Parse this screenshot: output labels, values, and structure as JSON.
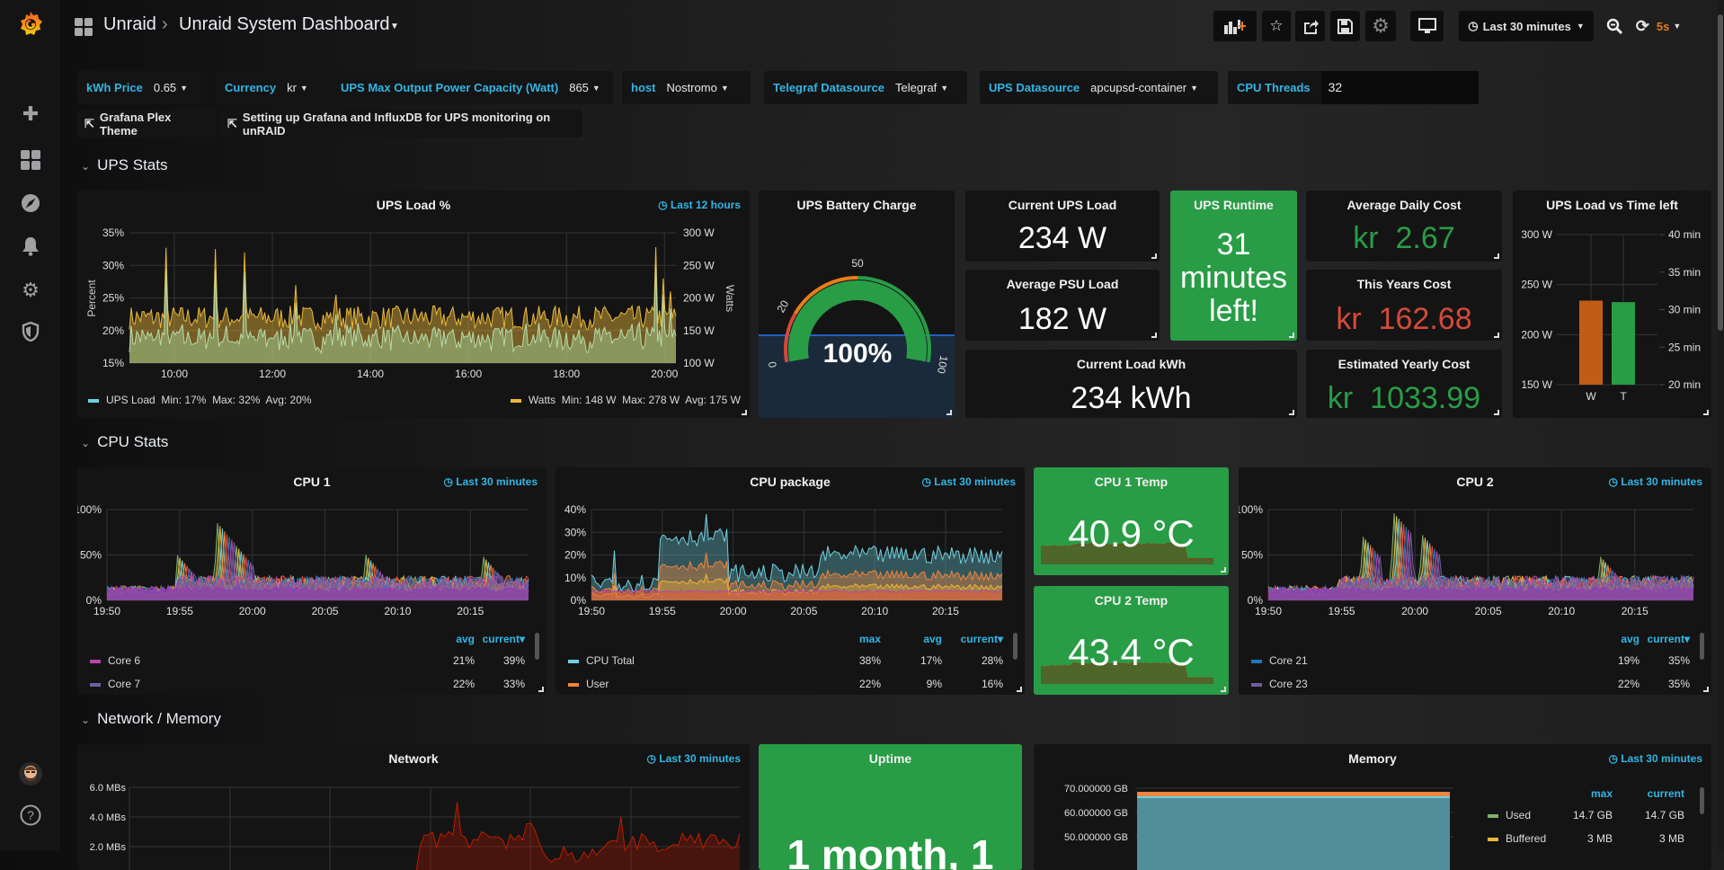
{
  "topbar": {
    "folder": "Unraid",
    "separator": "›",
    "dashboard": "Unraid System Dashboard",
    "time_range": "Last 30 minutes",
    "refresh": "5s"
  },
  "icons": {
    "logo": "grafana-logo",
    "create": "plus-icon",
    "dashboards": "grid-icon",
    "explore": "compass-icon",
    "alerting": "bell-icon",
    "config": "gear-icon",
    "admin": "shield-icon",
    "help": "help-icon"
  },
  "variables": [
    {
      "label": "kWh Price",
      "value": "0.65"
    },
    {
      "label": "Currency",
      "value": "kr"
    },
    {
      "label": "UPS Max Output Power Capacity (Watt)",
      "value": "865"
    },
    {
      "label": "host",
      "value": "Nostromo"
    },
    {
      "label": "Telegraf Datasource",
      "value": "Telegraf"
    },
    {
      "label": "UPS Datasource",
      "value": "apcupsd-container"
    },
    {
      "label": "CPU Threads",
      "value": "32"
    }
  ],
  "links": [
    {
      "label": "Grafana Plex Theme"
    },
    {
      "label": "Setting up Grafana and InfluxDB for UPS monitoring on unRAID"
    }
  ],
  "rows": [
    {
      "title": "UPS Stats"
    },
    {
      "title": "CPU Stats"
    },
    {
      "title": "Network / Memory"
    }
  ],
  "colors": {
    "green": "#299c46",
    "red": "#d44a3a",
    "orange": "#eb7b18",
    "link": "#33b5e5"
  },
  "ups_load": {
    "title": "UPS Load %",
    "time": "Last 12 hours",
    "y_left_label": "Percent",
    "y_right_label": "Watts",
    "x_range": [
      "09:05",
      "20:14"
    ],
    "x_ticks": [
      "10:00",
      "12:00",
      "14:00",
      "16:00",
      "18:00",
      "20:00"
    ],
    "y_left": {
      "min": 15,
      "max": 35,
      "ticks": [
        "15%",
        "20%",
        "25%",
        "30%",
        "35%"
      ]
    },
    "y_right": {
      "min": 100,
      "max": 300,
      "ticks": [
        "100 W",
        "150 W",
        "200 W",
        "250 W",
        "300 W"
      ]
    },
    "legend": [
      {
        "name": "UPS Load",
        "stats": "Min: 17%  Max: 32%  Avg: 20%",
        "color": "#6ed0e0"
      },
      {
        "name": "Watts",
        "stats": "Min: 148 W  Max: 278 W  Avg: 175 W",
        "color": "#eab839"
      }
    ]
  },
  "battery": {
    "title": "UPS Battery Charge",
    "value": "100%",
    "percent": 100,
    "thresholds": [
      {
        "label": "0",
        "at": 0
      },
      {
        "label": "20",
        "at": 20
      },
      {
        "label": "50",
        "at": 50
      },
      {
        "label": "100",
        "at": 100
      }
    ]
  },
  "current_ups_load": {
    "title": "Current UPS Load",
    "value": "234 W"
  },
  "avg_psu_load": {
    "title": "Average PSU Load",
    "value": "182 W"
  },
  "current_kwh": {
    "title": "Current Load kWh",
    "value": "234 kWh"
  },
  "runtime": {
    "title": "UPS Runtime",
    "value_lines": [
      "31",
      "minutes",
      "left!"
    ]
  },
  "avg_daily_cost": {
    "title": "Average Daily Cost",
    "prefix": "kr",
    "value": "2.67",
    "color": "#299c46"
  },
  "years_cost": {
    "title": "This Years Cost",
    "prefix": "kr",
    "value": "162.68",
    "color": "#d44a3a"
  },
  "yearly_cost": {
    "title": "Estimated Yearly Cost",
    "prefix": "kr",
    "value": "1033.99",
    "color": "#299c46"
  },
  "load_vs_time": {
    "title": "UPS Load vs Time left",
    "categories": [
      "W",
      "T"
    ],
    "values": [
      234,
      31
    ],
    "units": [
      "W",
      "min"
    ],
    "colors": [
      "#c15c17",
      "#299c46"
    ],
    "y_left": {
      "min": 150,
      "max": 300,
      "ticks": [
        "150 W",
        "200 W",
        "250 W",
        "300 W"
      ]
    },
    "y_right": {
      "min": 20,
      "max": 40,
      "ticks": [
        "20 min",
        "25 min",
        "30 min",
        "35 min",
        "40 min"
      ]
    }
  },
  "cpu1": {
    "title": "CPU 1",
    "time": "Last 30 minutes",
    "x_range": [
      "19:50",
      "20:19"
    ],
    "x_ticks": [
      "19:50",
      "19:55",
      "20:00",
      "20:05",
      "20:10",
      "20:15"
    ],
    "y": {
      "min": 0,
      "max": 100,
      "ticks": [
        "0%",
        "50%",
        "100%"
      ]
    },
    "columns": [
      "avg",
      "current▾"
    ],
    "legend": [
      {
        "name": "Core 6",
        "color": "#ba43a9",
        "values": [
          "21%",
          "39%"
        ]
      },
      {
        "name": "Core 7",
        "color": "#705da0",
        "values": [
          "22%",
          "33%"
        ]
      }
    ]
  },
  "cpu_package": {
    "title": "CPU package",
    "time": "Last 30 minutes",
    "x_range": [
      "19:50",
      "20:19"
    ],
    "x_ticks": [
      "19:50",
      "19:55",
      "20:00",
      "20:05",
      "20:10",
      "20:15"
    ],
    "y": {
      "min": 0,
      "max": 40,
      "ticks": [
        "0%",
        "10%",
        "20%",
        "30%",
        "40%"
      ]
    },
    "columns": [
      "max",
      "avg",
      "current▾"
    ],
    "legend": [
      {
        "name": "CPU Total",
        "color": "#6ed0e0",
        "values": [
          "38%",
          "17%",
          "28%"
        ]
      },
      {
        "name": "User",
        "color": "#ef843c",
        "values": [
          "22%",
          "9%",
          "16%"
        ]
      }
    ]
  },
  "cpu1_temp": {
    "title": "CPU 1 Temp",
    "value": "40.9 °C"
  },
  "cpu2_temp": {
    "title": "CPU 2 Temp",
    "value": "43.4 °C"
  },
  "cpu2": {
    "title": "CPU 2",
    "time": "Last 30 minutes",
    "x_range": [
      "19:50",
      "20:19"
    ],
    "x_ticks": [
      "19:50",
      "19:55",
      "20:00",
      "20:05",
      "20:10",
      "20:15"
    ],
    "y": {
      "min": 0,
      "max": 100,
      "ticks": [
        "0%",
        "50%",
        "100%"
      ]
    },
    "columns": [
      "avg",
      "current▾"
    ],
    "legend": [
      {
        "name": "Core 21",
        "color": "#1f78c1",
        "values": [
          "19%",
          "35%"
        ]
      },
      {
        "name": "Core 23",
        "color": "#705da0",
        "values": [
          "22%",
          "35%"
        ]
      }
    ]
  },
  "network": {
    "title": "Network",
    "time": "Last 30 minutes",
    "y": {
      "ticks": [
        "6.0 MBs",
        "4.0 MBs",
        "2.0 MBs"
      ]
    }
  },
  "uptime": {
    "title": "Uptime",
    "value": "1 month, 1"
  },
  "memory": {
    "title": "Memory",
    "time": "Last 30 minutes",
    "y": {
      "ticks": [
        "70.000000 GB",
        "60.000000 GB",
        "50.000000 GB"
      ]
    },
    "columns": [
      "max",
      "current"
    ],
    "legend": [
      {
        "name": "Used",
        "color": "#7eb26d",
        "values": [
          "14.7 GB",
          "14.7 GB"
        ]
      },
      {
        "name": "Buffered",
        "color": "#eab839",
        "values": [
          "3 MB",
          "3 MB"
        ]
      }
    ]
  }
}
